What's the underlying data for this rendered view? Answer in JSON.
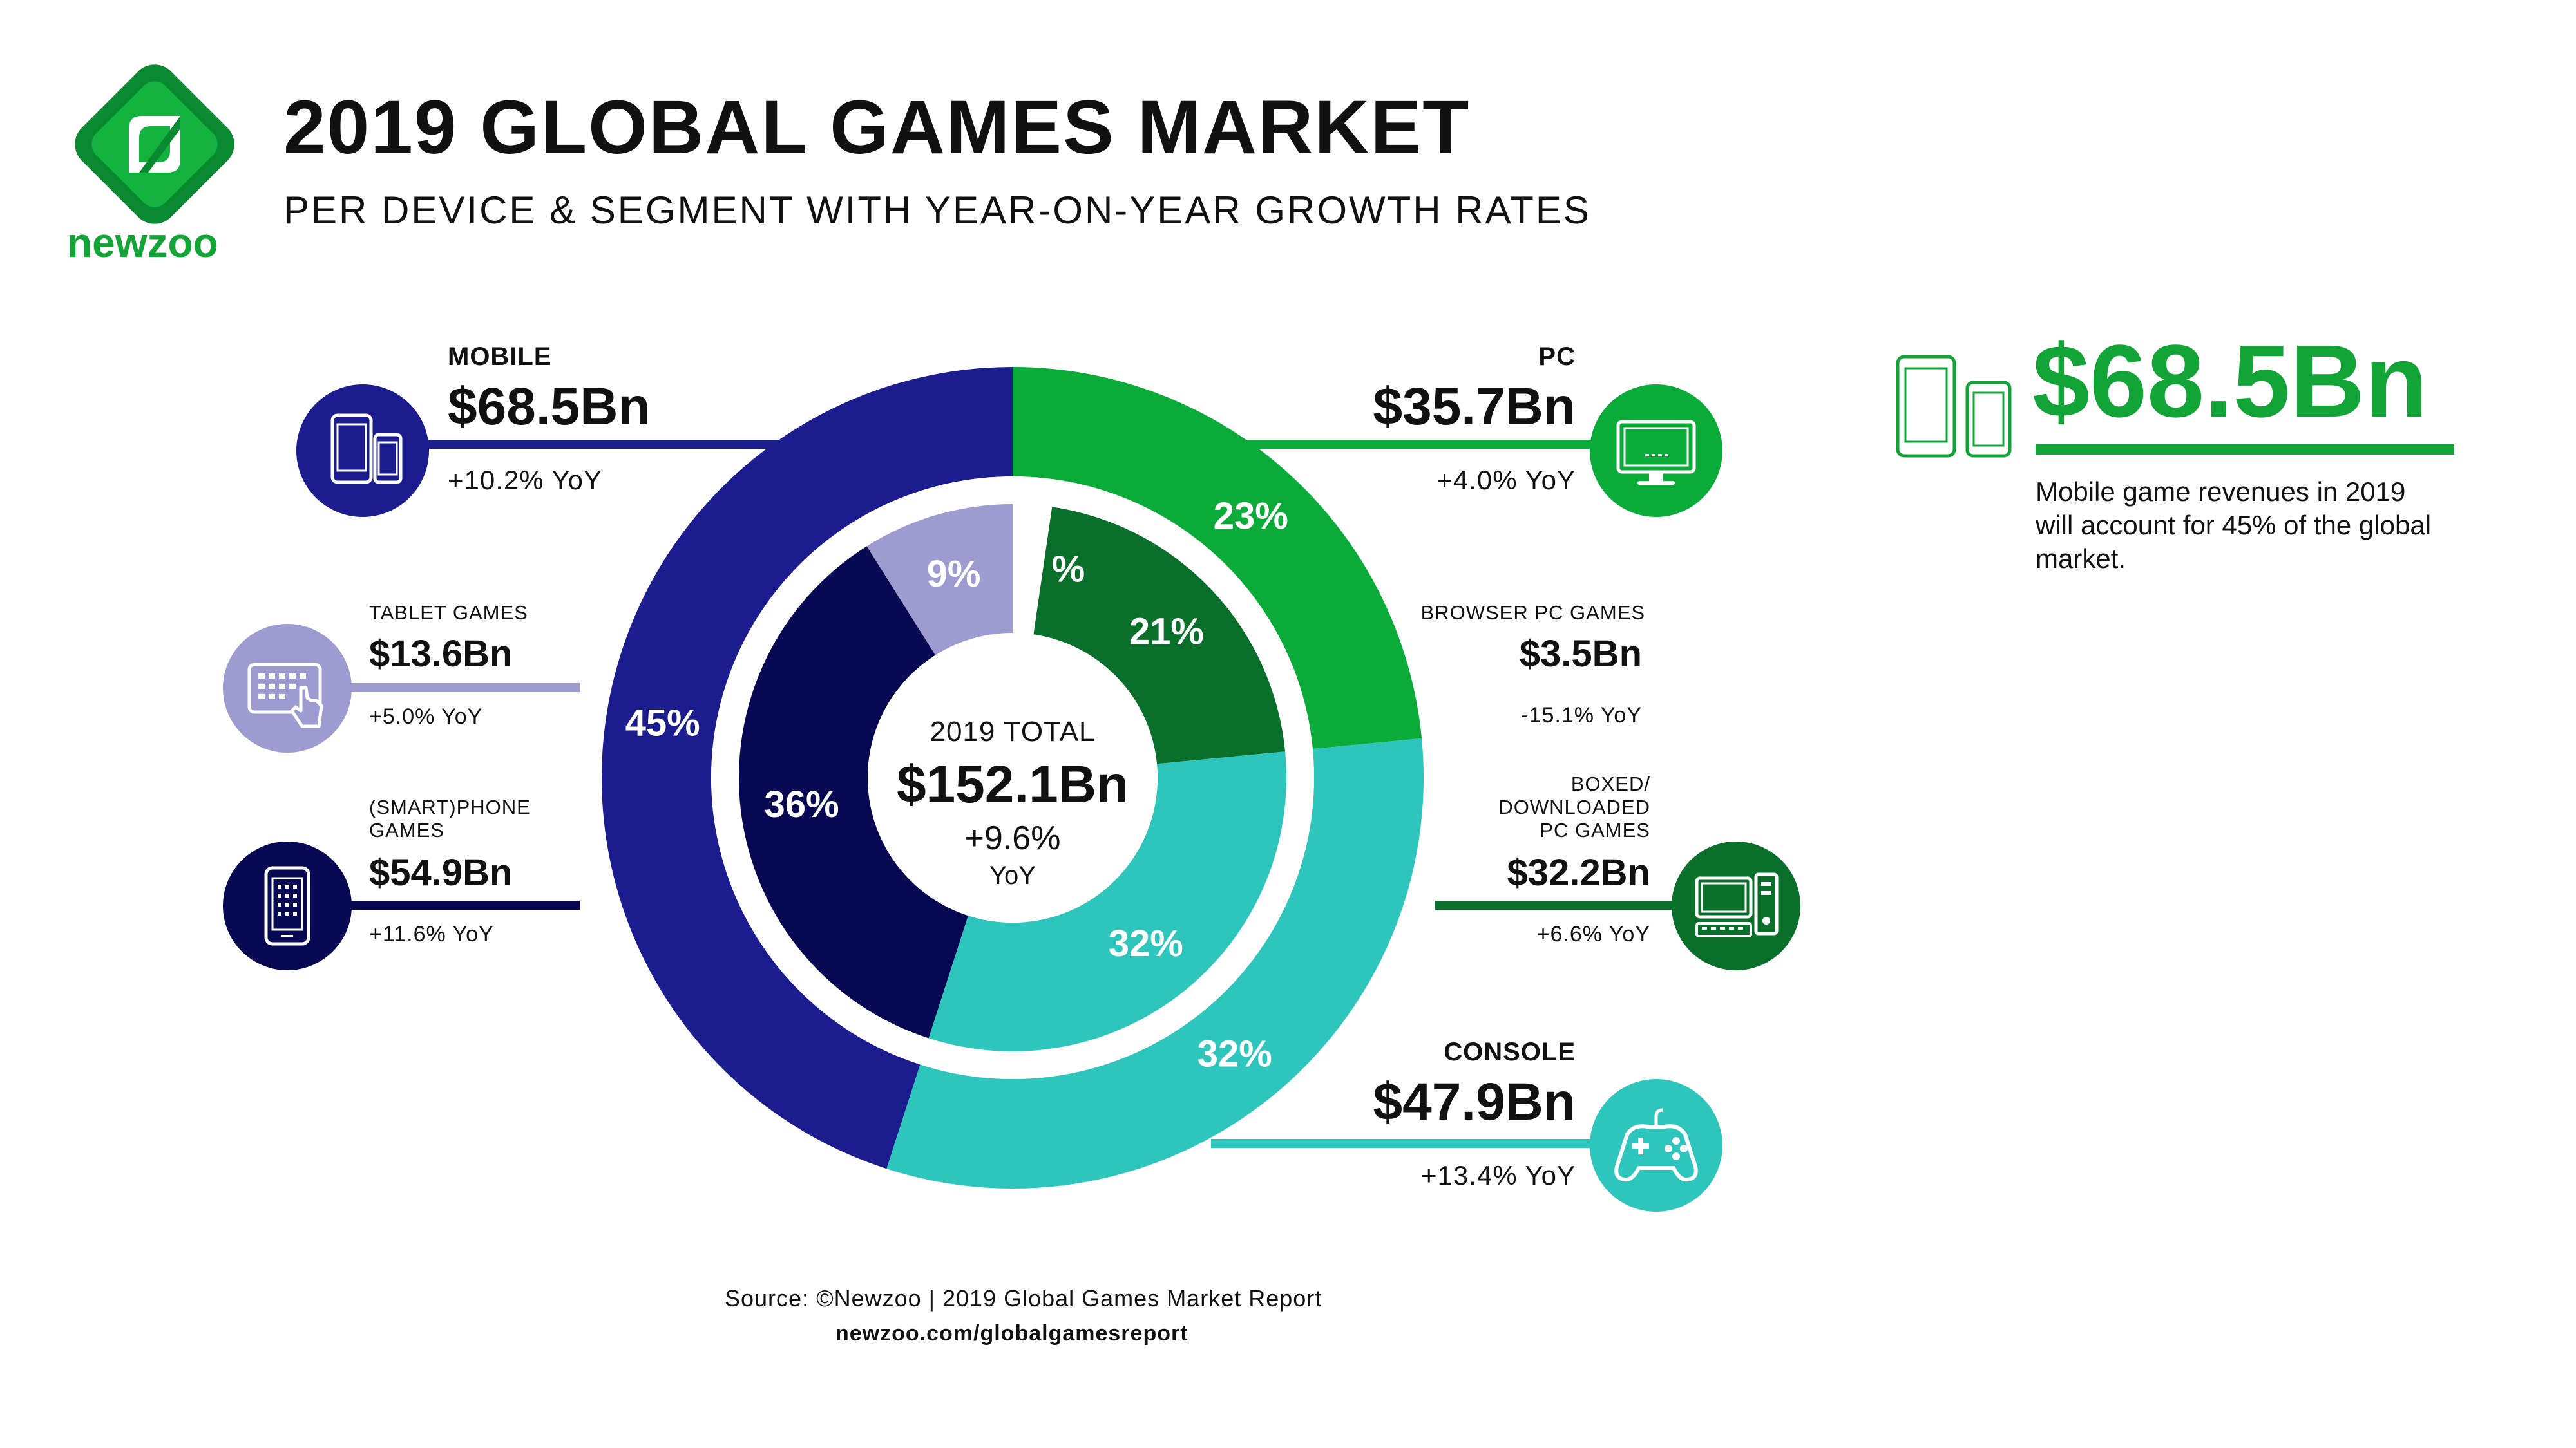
{
  "brand": {
    "name": "newzoo",
    "accent": "#12a437",
    "dark_green": "#0a6f2a"
  },
  "header": {
    "title": "2019 GLOBAL GAMES MARKET",
    "subtitle": "PER DEVICE & SEGMENT WITH YEAR-ON-YEAR GROWTH RATES"
  },
  "chart_data": {
    "type": "pie",
    "center": {
      "label": "2019 TOTAL",
      "value": "$152.1Bn",
      "yoy": "+9.6%",
      "yoy_unit": "YoY"
    },
    "outer_ring": [
      {
        "name": "PC",
        "value_bn": 35.7,
        "value_text": "$35.7Bn",
        "yoy": "+4.0% YoY",
        "share_label": "23%",
        "color": "#0aab39",
        "icon": "monitor-icon"
      },
      {
        "name": "CONSOLE",
        "value_bn": 47.9,
        "value_text": "$47.9Bn",
        "yoy": "+13.4% YoY",
        "share_label": "32%",
        "color": "#2ec5bd",
        "icon": "gamepad-icon"
      },
      {
        "name": "MOBILE",
        "value_bn": 68.5,
        "value_text": "$68.5Bn",
        "yoy": "+10.2% YoY",
        "share_label": "45%",
        "color": "#1b1c8e",
        "icon": "phone-tablet-icon"
      }
    ],
    "inner_ring": [
      {
        "name": "BROWSER PC GAMES",
        "value_bn": 3.5,
        "value_text": "$3.5Bn",
        "yoy": "-15.1% YoY",
        "share_label": "%",
        "color": "#ffffff"
      },
      {
        "name": "BOXED/ DOWNLOADED PC GAMES",
        "name_lines": [
          "BOXED/",
          "DOWNLOADED",
          "PC GAMES"
        ],
        "value_bn": 32.2,
        "value_text": "$32.2Bn",
        "yoy": "+6.6% YoY",
        "share_label": "21%",
        "color": "#0a6f2a",
        "icon": "desktop-pc-icon"
      },
      {
        "name": "CONSOLE",
        "value_bn": 47.9,
        "share_label": "32%",
        "color": "#2ec5bd"
      },
      {
        "name": "(SMART)PHONE GAMES",
        "name_lines": [
          "(SMART)PHONE",
          "GAMES"
        ],
        "value_bn": 54.9,
        "value_text": "$54.9Bn",
        "yoy": "+11.6% YoY",
        "share_label": "36%",
        "color": "#070a52",
        "icon": "smartphone-icon"
      },
      {
        "name": "TABLET GAMES",
        "value_bn": 13.6,
        "value_text": "$13.6Bn",
        "yoy": "+5.0% YoY",
        "share_label": "9%",
        "color": "#9d9bcf",
        "icon": "tablet-touch-icon"
      }
    ]
  },
  "highlight": {
    "value": "$68.5Bn",
    "text": "Mobile game revenues in 2019 will account for 45% of the global market.",
    "icon": "phone-tablet-icon"
  },
  "footer": {
    "source": "Source: ©Newzoo | 2019 Global Games Market Report",
    "url": "newzoo.com/globalgamesreport"
  }
}
